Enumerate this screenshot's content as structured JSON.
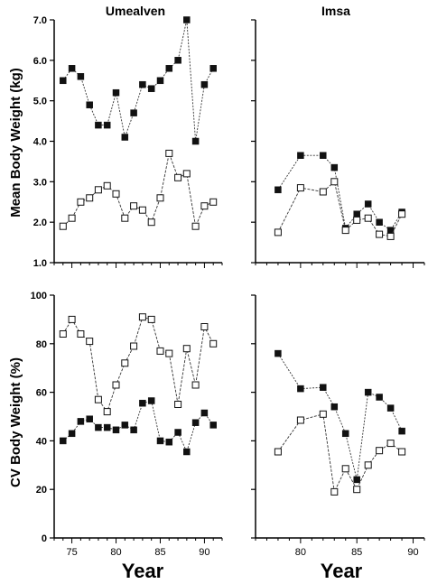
{
  "labels": {
    "ylabel_top": "Mean Body Weight (kg)",
    "ylabel_bottom": "CV Body Weight (%)",
    "xlabel_left": "Year",
    "xlabel_right": "Year",
    "title_left": "Umealven",
    "title_right": "Imsa"
  },
  "colors": {
    "filled": "#111111",
    "open_fill": "#ffffff",
    "line": "#333333"
  },
  "chart_data": [
    {
      "id": "umealven-mean",
      "type": "line",
      "title": "Umealven",
      "ylabel": "Mean Body Weight (kg)",
      "ylim": [
        1.0,
        7.0
      ],
      "yticks": [
        "1.0",
        "2.0",
        "3.0",
        "4.0",
        "5.0",
        "6.0",
        "7.0"
      ],
      "xlim": [
        73,
        92
      ],
      "xticks": [
        75,
        80,
        85,
        90
      ],
      "series": [
        {
          "style": "filled",
          "x": [
            74,
            75,
            76,
            77,
            78,
            79,
            80,
            81,
            82,
            83,
            84,
            85,
            86,
            87,
            88,
            89,
            90,
            91
          ],
          "values": [
            5.5,
            5.8,
            5.6,
            4.9,
            4.4,
            4.4,
            5.2,
            4.1,
            4.7,
            5.4,
            5.3,
            5.5,
            5.8,
            6.0,
            7.0,
            4.0,
            5.4,
            5.8
          ]
        },
        {
          "style": "open",
          "x": [
            74,
            75,
            76,
            77,
            78,
            79,
            80,
            81,
            82,
            83,
            84,
            85,
            86,
            87,
            88,
            89,
            90,
            91
          ],
          "values": [
            1.9,
            2.1,
            2.5,
            2.6,
            2.8,
            2.9,
            2.7,
            2.1,
            2.4,
            2.3,
            2.0,
            2.6,
            3.7,
            3.1,
            3.2,
            1.9,
            2.4,
            2.5
          ]
        }
      ]
    },
    {
      "id": "imsa-mean",
      "type": "line",
      "title": "Imsa",
      "ylim": [
        1.0,
        7.0
      ],
      "xlim": [
        76,
        91
      ],
      "xticks": [
        80,
        85,
        90
      ],
      "series": [
        {
          "style": "filled",
          "x": [
            78,
            80,
            82,
            83,
            84,
            85,
            86,
            87,
            88,
            89
          ],
          "values": [
            2.8,
            3.65,
            3.65,
            3.35,
            1.85,
            2.2,
            2.45,
            2.0,
            1.8,
            2.25
          ]
        },
        {
          "style": "open",
          "x": [
            78,
            80,
            82,
            83,
            84,
            85,
            86,
            87,
            88,
            89
          ],
          "values": [
            1.75,
            2.85,
            2.75,
            3.0,
            1.8,
            2.05,
            2.1,
            1.7,
            1.65,
            2.2
          ]
        }
      ]
    },
    {
      "id": "umealven-cv",
      "type": "line",
      "ylabel": "CV Body Weight (%)",
      "xlabel": "Year",
      "ylim": [
        0,
        100
      ],
      "yticks": [
        "0",
        "20",
        "40",
        "60",
        "80",
        "100"
      ],
      "xlim": [
        73,
        92
      ],
      "xticks": [
        75,
        80,
        85,
        90
      ],
      "series": [
        {
          "style": "open",
          "x": [
            74,
            75,
            76,
            77,
            78,
            79,
            80,
            81,
            82,
            83,
            84,
            85,
            86,
            87,
            88,
            89,
            90,
            91
          ],
          "values": [
            84,
            90,
            84,
            81,
            57,
            52,
            63,
            72,
            79,
            91,
            90,
            77,
            76,
            55,
            78,
            63,
            87,
            80
          ]
        },
        {
          "style": "filled",
          "x": [
            74,
            75,
            76,
            77,
            78,
            79,
            80,
            81,
            82,
            83,
            84,
            85,
            86,
            87,
            88,
            89,
            90,
            91
          ],
          "values": [
            40,
            43,
            48,
            49,
            45.5,
            45.5,
            44.5,
            46.5,
            44.5,
            55.5,
            56.5,
            40,
            39.5,
            43.5,
            35.5,
            47.5,
            51.5,
            46.5
          ]
        }
      ]
    },
    {
      "id": "imsa-cv",
      "type": "line",
      "xlabel": "Year",
      "ylim": [
        0,
        100
      ],
      "xlim": [
        76,
        91
      ],
      "xticks": [
        80,
        85,
        90
      ],
      "series": [
        {
          "style": "filled",
          "x": [
            78,
            80,
            82,
            83,
            84,
            85,
            86,
            87,
            88,
            89
          ],
          "values": [
            76,
            61.5,
            62,
            54,
            43,
            24,
            60,
            58,
            53.5,
            44
          ]
        },
        {
          "style": "open",
          "x": [
            78,
            80,
            82,
            83,
            84,
            85,
            86,
            87,
            88,
            89
          ],
          "values": [
            35.5,
            48.5,
            51,
            19,
            28.5,
            20,
            30,
            36,
            39,
            35.5
          ]
        }
      ]
    }
  ]
}
